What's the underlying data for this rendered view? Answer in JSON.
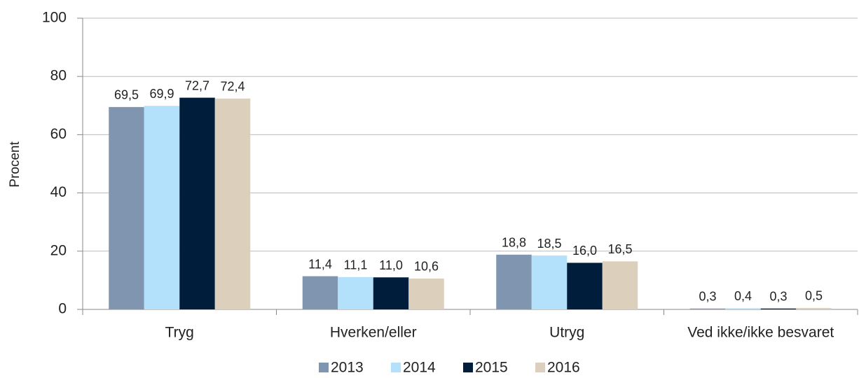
{
  "chart_data": {
    "type": "bar",
    "y_label": "Procent",
    "categories": [
      "Tryg",
      "Hverken/eller",
      "Utryg",
      "Ved ikke/ikke besvaret"
    ],
    "series": [
      {
        "name": "2013",
        "color": "#8096b0",
        "values": [
          69.5,
          11.4,
          18.8,
          0.3
        ],
        "value_labels": [
          "69,5",
          "11,4",
          "18,8",
          "0,3"
        ]
      },
      {
        "name": "2014",
        "color": "#b3e0fb",
        "values": [
          69.9,
          11.1,
          18.5,
          0.4
        ],
        "value_labels": [
          "69,9",
          "11,1",
          "18,5",
          "0,4"
        ]
      },
      {
        "name": "2015",
        "color": "#001e3c",
        "values": [
          72.7,
          11.0,
          16.0,
          0.3
        ],
        "value_labels": [
          "72,7",
          "11,0",
          "16,0",
          "0,3"
        ]
      },
      {
        "name": "2016",
        "color": "#dcd0bc",
        "values": [
          72.4,
          10.6,
          16.5,
          0.5
        ],
        "value_labels": [
          "72,4",
          "10,6",
          "16,5",
          "0,5"
        ]
      }
    ],
    "ylim": [
      0,
      100
    ],
    "yticks": [
      0,
      20,
      40,
      60,
      80,
      100
    ],
    "grid": true,
    "legend": "bottom"
  }
}
